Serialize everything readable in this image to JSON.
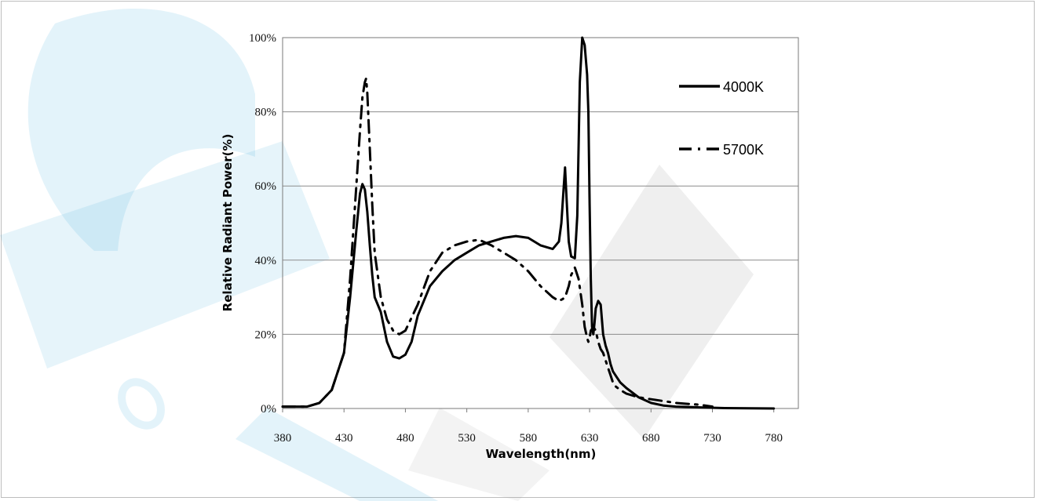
{
  "chart_data": {
    "type": "line",
    "title": "",
    "xlabel": "Wavelength(nm)",
    "ylabel": "Relative Radiant Power(%)",
    "xlim": [
      380,
      800
    ],
    "ylim": [
      0,
      100
    ],
    "x_ticks": [
      380,
      430,
      480,
      530,
      580,
      630,
      680,
      730,
      780
    ],
    "x_tick_labels": [
      "380",
      "430",
      "480",
      "530",
      "580",
      "630",
      "680",
      "730",
      "780"
    ],
    "y_ticks": [
      0,
      20,
      40,
      60,
      80,
      100
    ],
    "y_tick_labels": [
      "0%",
      "20%",
      "40%",
      "60%",
      "80%",
      "100%"
    ],
    "grid": "horizontal",
    "legend_position": "top-right",
    "series": [
      {
        "name": "4000K",
        "style": "solid",
        "x": [
          380,
          400,
          410,
          420,
          430,
          435,
          440,
          443,
          445,
          447,
          449,
          451,
          453,
          455,
          460,
          465,
          470,
          475,
          480,
          485,
          490,
          500,
          510,
          520,
          530,
          540,
          550,
          560,
          570,
          580,
          590,
          600,
          605,
          607,
          609,
          610,
          611,
          613,
          615,
          618,
          620,
          622,
          624,
          626,
          628,
          629,
          630,
          631,
          632,
          633,
          634,
          635,
          637,
          639,
          641,
          643,
          645,
          647,
          649,
          651,
          655,
          660,
          670,
          680,
          690,
          700,
          720,
          740,
          760,
          780
        ],
        "y": [
          0.5,
          0.5,
          1.5,
          5,
          15,
          30,
          48,
          58,
          60.5,
          59,
          53,
          44,
          36,
          30,
          26,
          18,
          14,
          13.5,
          14.5,
          18,
          25,
          33,
          37,
          40,
          42,
          44,
          45,
          46,
          46.5,
          46,
          44,
          43,
          45,
          50,
          60,
          65,
          58,
          45,
          41,
          40.5,
          52,
          88,
          100,
          98,
          90,
          80,
          55,
          35,
          22,
          20,
          23,
          27,
          29,
          28,
          20,
          17,
          15,
          12,
          10,
          9,
          7,
          5.5,
          3,
          1.5,
          0.8,
          0.5,
          0.3,
          0.1,
          0.05,
          0
        ]
      },
      {
        "name": "5700K",
        "style": "dash-dot",
        "x": [
          380,
          400,
          410,
          420,
          430,
          435,
          440,
          443,
          445,
          447,
          448,
          449,
          451,
          453,
          455,
          460,
          465,
          470,
          475,
          480,
          490,
          500,
          510,
          520,
          530,
          540,
          550,
          560,
          570,
          580,
          590,
          600,
          605,
          608,
          610,
          611,
          613,
          615,
          618,
          621,
          624,
          626,
          628,
          629,
          630,
          631,
          633,
          635,
          637,
          639,
          641,
          643,
          645,
          647,
          649,
          651,
          655,
          660,
          670,
          680,
          690,
          700,
          720,
          730
        ],
        "y": [
          0.5,
          0.5,
          1.5,
          5,
          15,
          35,
          60,
          75,
          84,
          88,
          89,
          85,
          70,
          55,
          42,
          30,
          24,
          21,
          20,
          21,
          28,
          37,
          42,
          44,
          45,
          45.5,
          44,
          42,
          40,
          37,
          33,
          30,
          29,
          29.5,
          30,
          31,
          33,
          36,
          38,
          35,
          28,
          22,
          19,
          18,
          19,
          21,
          22,
          21,
          18,
          16,
          15,
          13,
          11,
          9,
          7,
          6,
          5,
          4,
          3,
          2.5,
          2,
          1.5,
          1,
          0.5
        ]
      }
    ]
  },
  "colors": {
    "line": "#000000",
    "gridline": "#8c8c8c",
    "axis": "#7a7a7a",
    "watermark_blue": "#3aa8dc",
    "watermark_gray": "#9a9a9a"
  }
}
